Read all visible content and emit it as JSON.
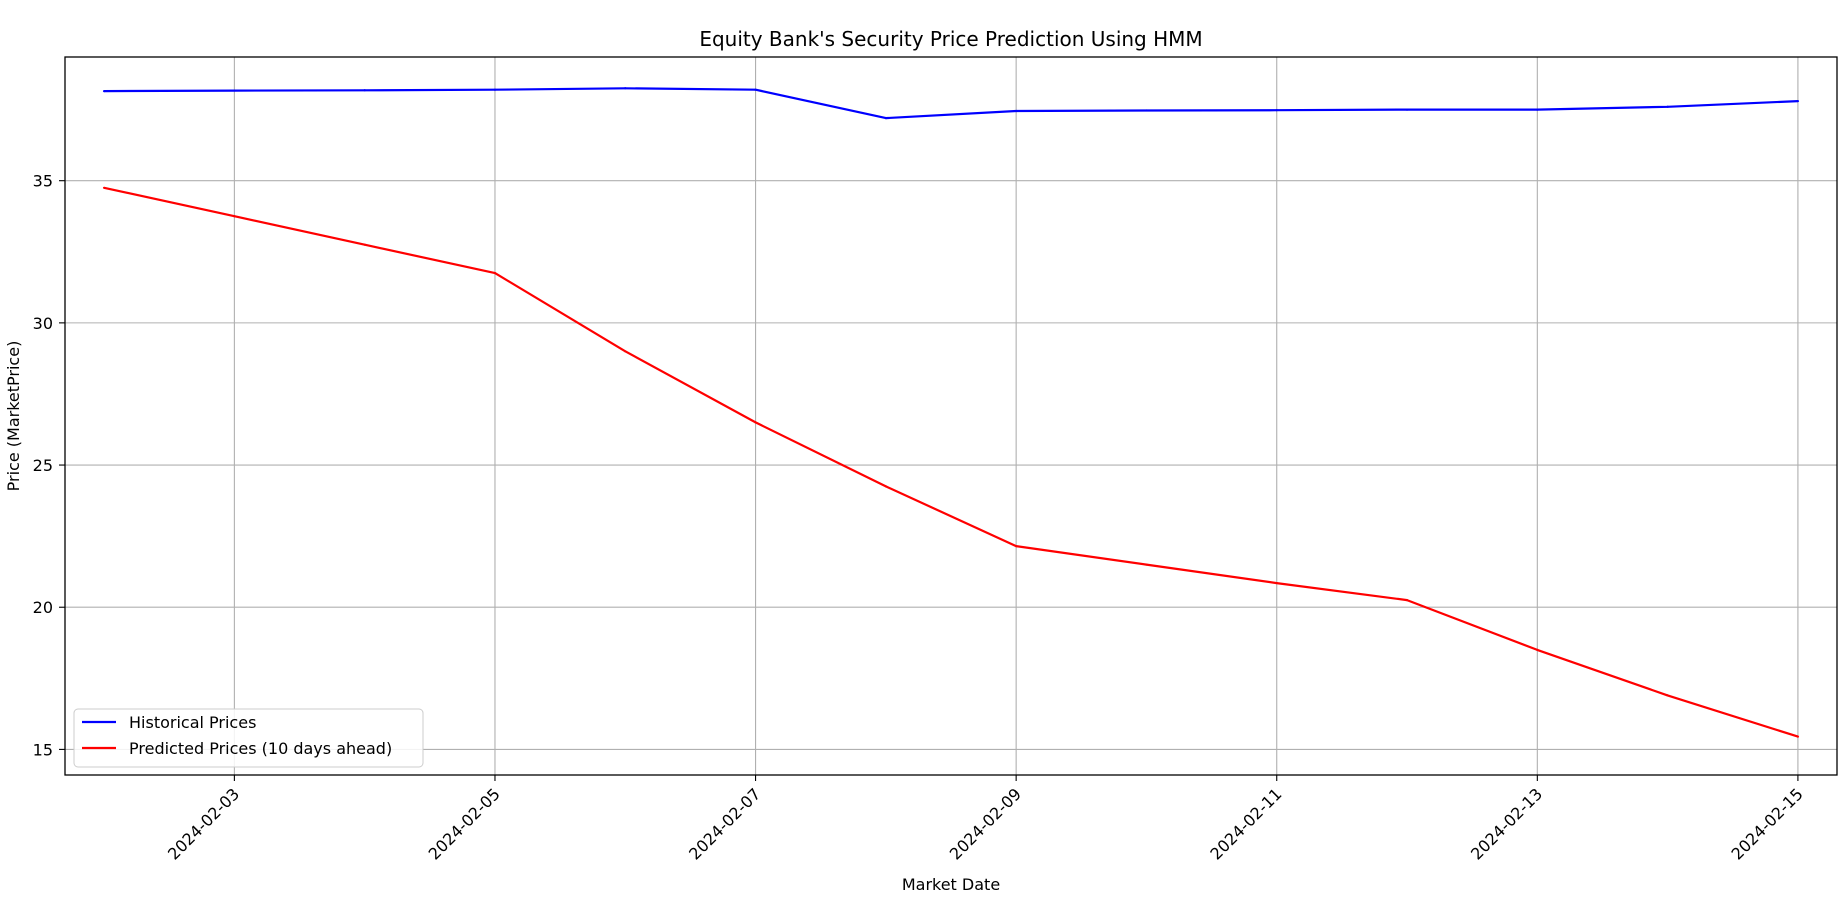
{
  "chart_data": {
    "type": "line",
    "title": "Equity Bank's Security Price Prediction Using HMM",
    "xlabel": "Market Date",
    "ylabel": "Price (MarketPrice)",
    "x": [
      "2024-02-02",
      "2024-02-03",
      "2024-02-04",
      "2024-02-05",
      "2024-02-06",
      "2024-02-07",
      "2024-02-08",
      "2024-02-09",
      "2024-02-10",
      "2024-02-11",
      "2024-02-12",
      "2024-02-13",
      "2024-02-14",
      "2024-02-15"
    ],
    "xlim": [
      "2024-02-01T16:48:00",
      "2024-02-15T07:12:00"
    ],
    "ylim": [
      14.1,
      39.35
    ],
    "x_ticks": [
      "2024-02-03",
      "2024-02-05",
      "2024-02-07",
      "2024-02-09",
      "2024-02-11",
      "2024-02-13",
      "2024-02-15"
    ],
    "y_ticks": [
      15,
      20,
      25,
      30,
      35
    ],
    "grid": true,
    "legend_position": "lower left",
    "series": [
      {
        "name": "Historical Prices",
        "color": "#0000ff",
        "values": [
          38.15,
          38.17,
          38.18,
          38.2,
          38.25,
          38.2,
          37.2,
          37.45,
          37.47,
          37.48,
          37.5,
          37.5,
          37.6,
          37.8
        ]
      },
      {
        "name": "Predicted Prices (10 days ahead)",
        "color": "#ff0000",
        "values": [
          34.75,
          33.75,
          32.75,
          31.75,
          29.0,
          26.5,
          24.25,
          22.15,
          21.5,
          20.85,
          20.25,
          18.5,
          16.9,
          15.45
        ]
      }
    ]
  }
}
